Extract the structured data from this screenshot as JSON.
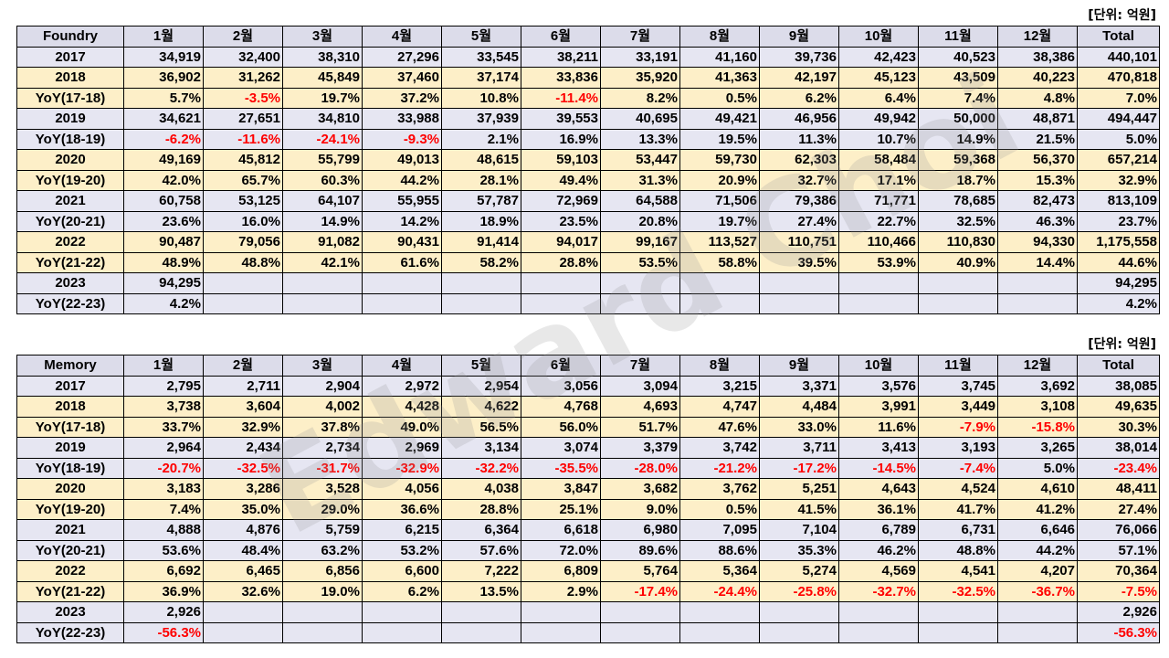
{
  "watermark": "Edward Choi",
  "tables": [
    {
      "unit": "[단위: 억원]",
      "headers": [
        "Foundry",
        "1월",
        "2월",
        "3월",
        "4월",
        "5월",
        "6월",
        "7월",
        "8월",
        "9월",
        "10월",
        "11월",
        "12월",
        "Total"
      ],
      "rows": [
        {
          "style": "plain",
          "cells": [
            "2017",
            "34,919",
            "32,400",
            "38,310",
            "27,296",
            "33,545",
            "38,211",
            "33,191",
            "41,160",
            "39,736",
            "42,423",
            "40,523",
            "38,386",
            "440,101"
          ]
        },
        {
          "style": "peach",
          "cells": [
            "2018",
            "36,902",
            "31,262",
            "45,849",
            "37,460",
            "37,174",
            "33,836",
            "35,920",
            "41,363",
            "42,197",
            "45,123",
            "43,509",
            "40,223",
            "470,818"
          ]
        },
        {
          "style": "peach",
          "cells": [
            "YoY(17-18)",
            "5.7%",
            "-3.5%",
            "19.7%",
            "37.2%",
            "10.8%",
            "-11.4%",
            "8.2%",
            "0.5%",
            "6.2%",
            "6.4%",
            "7.4%",
            "4.8%",
            "7.0%"
          ]
        },
        {
          "style": "plain",
          "cells": [
            "2019",
            "34,621",
            "27,651",
            "34,810",
            "33,988",
            "37,939",
            "39,553",
            "40,695",
            "49,421",
            "46,956",
            "49,942",
            "50,000",
            "48,871",
            "494,447"
          ]
        },
        {
          "style": "plain",
          "cells": [
            "YoY(18-19)",
            "-6.2%",
            "-11.6%",
            "-24.1%",
            "-9.3%",
            "2.1%",
            "16.9%",
            "13.3%",
            "19.5%",
            "11.3%",
            "10.7%",
            "14.9%",
            "21.5%",
            "5.0%"
          ]
        },
        {
          "style": "peach",
          "cells": [
            "2020",
            "49,169",
            "45,812",
            "55,799",
            "49,013",
            "48,615",
            "59,103",
            "53,447",
            "59,730",
            "62,303",
            "58,484",
            "59,368",
            "56,370",
            "657,214"
          ]
        },
        {
          "style": "peach",
          "cells": [
            "YoY(19-20)",
            "42.0%",
            "65.7%",
            "60.3%",
            "44.2%",
            "28.1%",
            "49.4%",
            "31.3%",
            "20.9%",
            "32.7%",
            "17.1%",
            "18.7%",
            "15.3%",
            "32.9%"
          ]
        },
        {
          "style": "plain",
          "cells": [
            "2021",
            "60,758",
            "53,125",
            "64,107",
            "55,955",
            "57,787",
            "72,969",
            "64,588",
            "71,506",
            "79,386",
            "71,771",
            "78,685",
            "82,473",
            "813,109"
          ]
        },
        {
          "style": "plain",
          "cells": [
            "YoY(20-21)",
            "23.6%",
            "16.0%",
            "14.9%",
            "14.2%",
            "18.9%",
            "23.5%",
            "20.8%",
            "19.7%",
            "27.4%",
            "22.7%",
            "32.5%",
            "46.3%",
            "23.7%"
          ]
        },
        {
          "style": "peach",
          "cells": [
            "2022",
            "90,487",
            "79,056",
            "91,082",
            "90,431",
            "91,414",
            "94,017",
            "99,167",
            "113,527",
            "110,751",
            "110,466",
            "110,830",
            "94,330",
            "1,175,558"
          ]
        },
        {
          "style": "peach",
          "cells": [
            "YoY(21-22)",
            "48.9%",
            "48.8%",
            "42.1%",
            "61.6%",
            "58.2%",
            "28.8%",
            "53.5%",
            "58.8%",
            "39.5%",
            "53.9%",
            "40.9%",
            "14.4%",
            "44.6%"
          ]
        },
        {
          "style": "plain",
          "cells": [
            "2023",
            "94,295",
            "",
            "",
            "",
            "",
            "",
            "",
            "",
            "",
            "",
            "",
            "",
            "94,295"
          ]
        },
        {
          "style": "plain",
          "cells": [
            "YoY(22-23)",
            "4.2%",
            "",
            "",
            "",
            "",
            "",
            "",
            "",
            "",
            "",
            "",
            "",
            "4.2%"
          ]
        }
      ]
    },
    {
      "unit": "[단위: 억원]",
      "headers": [
        "Memory",
        "1월",
        "2월",
        "3월",
        "4월",
        "5월",
        "6월",
        "7월",
        "8월",
        "9월",
        "10월",
        "11월",
        "12월",
        "Total"
      ],
      "rows": [
        {
          "style": "plain",
          "cells": [
            "2017",
            "2,795",
            "2,711",
            "2,904",
            "2,972",
            "2,954",
            "3,056",
            "3,094",
            "3,215",
            "3,371",
            "3,576",
            "3,745",
            "3,692",
            "38,085"
          ]
        },
        {
          "style": "peach",
          "cells": [
            "2018",
            "3,738",
            "3,604",
            "4,002",
            "4,428",
            "4,622",
            "4,768",
            "4,693",
            "4,747",
            "4,484",
            "3,991",
            "3,449",
            "3,108",
            "49,635"
          ]
        },
        {
          "style": "peach",
          "cells": [
            "YoY(17-18)",
            "33.7%",
            "32.9%",
            "37.8%",
            "49.0%",
            "56.5%",
            "56.0%",
            "51.7%",
            "47.6%",
            "33.0%",
            "11.6%",
            "-7.9%",
            "-15.8%",
            "30.3%"
          ]
        },
        {
          "style": "plain",
          "cells": [
            "2019",
            "2,964",
            "2,434",
            "2,734",
            "2,969",
            "3,134",
            "3,074",
            "3,379",
            "3,742",
            "3,711",
            "3,413",
            "3,193",
            "3,265",
            "38,014"
          ]
        },
        {
          "style": "plain",
          "cells": [
            "YoY(18-19)",
            "-20.7%",
            "-32.5%",
            "-31.7%",
            "-32.9%",
            "-32.2%",
            "-35.5%",
            "-28.0%",
            "-21.2%",
            "-17.2%",
            "-14.5%",
            "-7.4%",
            "5.0%",
            "-23.4%"
          ]
        },
        {
          "style": "peach",
          "cells": [
            "2020",
            "3,183",
            "3,286",
            "3,528",
            "4,056",
            "4,038",
            "3,847",
            "3,682",
            "3,762",
            "5,251",
            "4,643",
            "4,524",
            "4,610",
            "48,411"
          ]
        },
        {
          "style": "peach",
          "cells": [
            "YoY(19-20)",
            "7.4%",
            "35.0%",
            "29.0%",
            "36.6%",
            "28.8%",
            "25.1%",
            "9.0%",
            "0.5%",
            "41.5%",
            "36.1%",
            "41.7%",
            "41.2%",
            "27.4%"
          ]
        },
        {
          "style": "plain",
          "cells": [
            "2021",
            "4,888",
            "4,876",
            "5,759",
            "6,215",
            "6,364",
            "6,618",
            "6,980",
            "7,095",
            "7,104",
            "6,789",
            "6,731",
            "6,646",
            "76,066"
          ]
        },
        {
          "style": "plain",
          "cells": [
            "YoY(20-21)",
            "53.6%",
            "48.4%",
            "63.2%",
            "53.2%",
            "57.6%",
            "72.0%",
            "89.6%",
            "88.6%",
            "35.3%",
            "46.2%",
            "48.8%",
            "44.2%",
            "57.1%"
          ]
        },
        {
          "style": "peach",
          "cells": [
            "2022",
            "6,692",
            "6,465",
            "6,856",
            "6,600",
            "7,222",
            "6,809",
            "5,764",
            "5,364",
            "5,274",
            "4,569",
            "4,541",
            "4,207",
            "70,364"
          ]
        },
        {
          "style": "peach",
          "cells": [
            "YoY(21-22)",
            "36.9%",
            "32.6%",
            "19.0%",
            "6.2%",
            "13.5%",
            "2.9%",
            "-17.4%",
            "-24.4%",
            "-25.8%",
            "-32.7%",
            "-32.5%",
            "-36.7%",
            "-7.5%"
          ]
        },
        {
          "style": "plain",
          "cells": [
            "2023",
            "2,926",
            "",
            "",
            "",
            "",
            "",
            "",
            "",
            "",
            "",
            "",
            "",
            "2,926"
          ]
        },
        {
          "style": "plain",
          "cells": [
            "YoY(22-23)",
            "-56.3%",
            "",
            "",
            "",
            "",
            "",
            "",
            "",
            "",
            "",
            "",
            "",
            "-56.3%"
          ]
        }
      ]
    }
  ]
}
